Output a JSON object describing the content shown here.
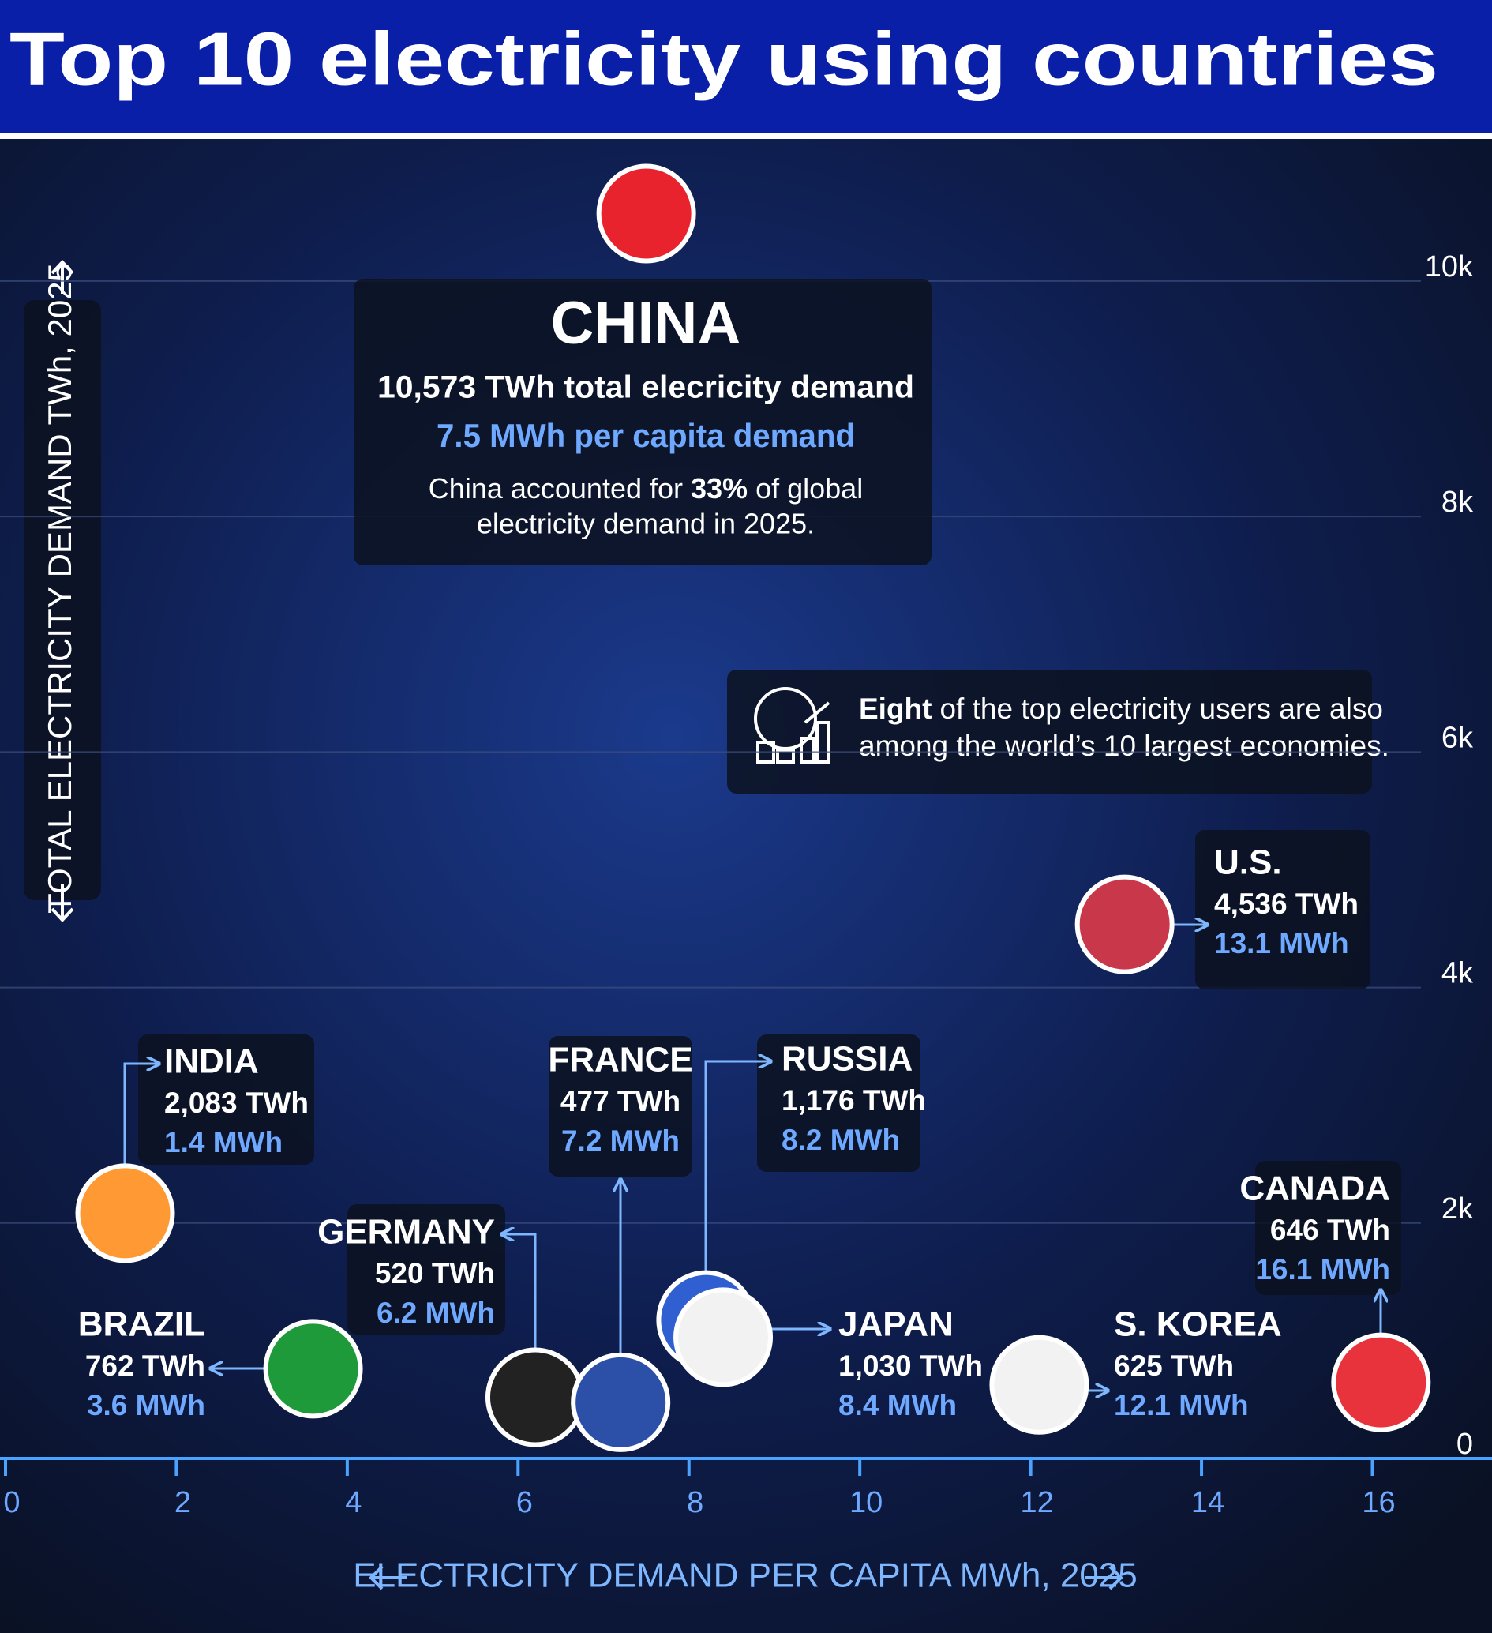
{
  "chart_data": {
    "type": "scatter",
    "title": "Top 10 electricity using countries",
    "x_label": "ELECTRICITY DEMAND PER CAPITA MWh, 2025",
    "y_label": "TOTAL ELECTRICITY DEMAND TWh, 2025",
    "labels": [
      "CHINA",
      "U.S.",
      "INDIA",
      "RUSSIA",
      "JAPAN",
      "BRAZIL",
      "CANADA",
      "S. KOREA",
      "GERMANY",
      "FRANCE"
    ],
    "x": [
      7.5,
      13.1,
      1.4,
      8.2,
      8.4,
      3.6,
      16.1,
      12.1,
      6.2,
      7.2
    ],
    "values": [
      10573,
      4536,
      2083,
      1176,
      1030,
      762,
      646,
      625,
      520,
      477
    ],
    "value_labels": [
      "10,573 TWh total elecricity demand",
      "4,536 TWh",
      "2,083 TWh",
      "1,176 TWh",
      "1,030 TWh",
      "762 TWh",
      "646 TWh",
      "625 TWh",
      "520 TWh",
      "477 TWh"
    ],
    "x_value_labels": [
      "7.5 MWh per capita demand",
      "13.1 MWh",
      "1.4 MWh",
      "8.2 MWh",
      "8.4 MWh",
      "3.6 MWh",
      "16.1 MWh",
      "12.1 MWh",
      "6.2 MWh",
      "7.2 MWh"
    ],
    "colors": [
      "#e8232e",
      "#c8384a",
      "#ff9933",
      "#2f5fd0",
      "#f2f2f2",
      "#1e9a3b",
      "#e8323c",
      "#f2f2f2",
      "#222222",
      "#2c4fa8"
    ],
    "xlim": [
      0,
      17.4
    ],
    "xticks": [
      0,
      2,
      4,
      6,
      8,
      10,
      12,
      14,
      16
    ],
    "ylim": [
      0,
      11200
    ],
    "yticks": [
      0,
      {
        "value": 2000,
        "label": "2k"
      },
      {
        "value": 4000,
        "label": "4k"
      },
      {
        "value": 6000,
        "label": "6k"
      },
      {
        "value": 8000,
        "label": "8k"
      },
      {
        "value": 10000,
        "label": "10k"
      }
    ],
    "grid": true,
    "china_note": {
      "before": "China accounted for",
      "bold": "33%",
      "after": "of global",
      "line2": "electricity demand in 2025."
    },
    "annotation": {
      "bold": "Eight",
      "line1": "of the top electricity users are also",
      "line2": "among the world’s 10 largest economies."
    }
  }
}
